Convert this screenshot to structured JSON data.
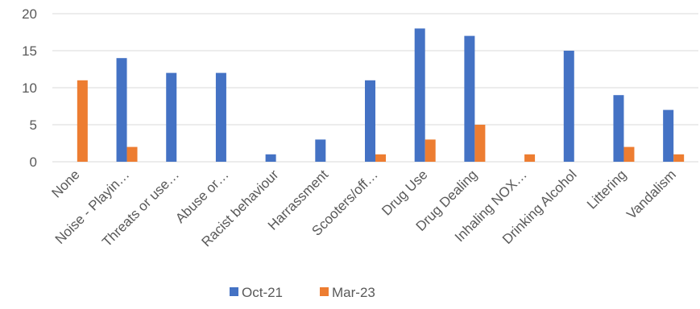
{
  "chart_data": {
    "type": "bar",
    "title": "",
    "xlabel": "",
    "ylabel": "",
    "ylim": [
      0,
      20
    ],
    "yticks": [
      0,
      5,
      10,
      15,
      20
    ],
    "grid": true,
    "legend_position": "bottom",
    "categories": [
      "None",
      "Noise - Playin…",
      "Threats or use…",
      "Abuse or…",
      "Racist behaviour",
      "Harrassment",
      "Scooters/off…",
      "Drug Use",
      "Drug Dealing",
      "Inhaling NOX…",
      "Drinking Alcohol",
      "Littering",
      "Vandalism"
    ],
    "series": [
      {
        "name": "Oct-21",
        "color": "#4472c4",
        "values": [
          0,
          14,
          12,
          12,
          1,
          3,
          11,
          18,
          17,
          0,
          15,
          9,
          7
        ]
      },
      {
        "name": "Mar-23",
        "color": "#ed7d31",
        "values": [
          11,
          2,
          0,
          0,
          0,
          0,
          1,
          3,
          5,
          1,
          0,
          2,
          1
        ]
      }
    ]
  }
}
